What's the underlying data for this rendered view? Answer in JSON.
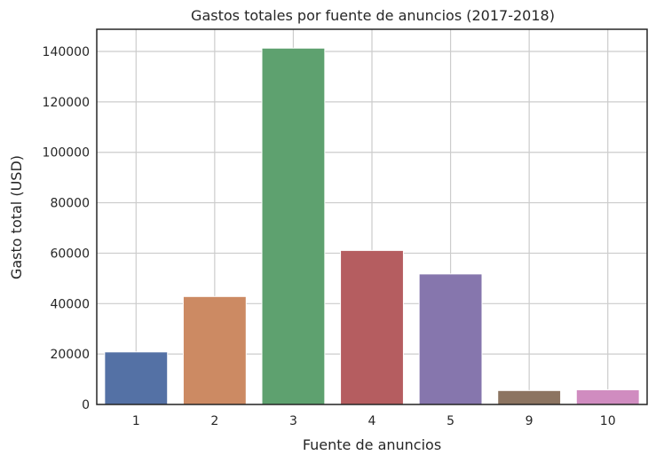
{
  "chart_data": {
    "type": "bar",
    "title": "Gastos totales por fuente de anuncios (2017-2018)",
    "xlabel": "Fuente de anuncios",
    "ylabel": "Gasto total (USD)",
    "categories": [
      "1",
      "2",
      "3",
      "4",
      "5",
      "9",
      "10"
    ],
    "values": [
      20833,
      42806,
      141322,
      61074,
      51757,
      5518,
      5822
    ],
    "ylim": [
      0,
      148800
    ],
    "yticks": [
      0,
      20000,
      40000,
      60000,
      80000,
      100000,
      120000,
      140000
    ],
    "ytick_labels": [
      "0",
      "20000",
      "40000",
      "60000",
      "80000",
      "100000",
      "120000",
      "140000"
    ],
    "colors": [
      "#5471a5",
      "#cc8a63",
      "#5ea16f",
      "#b55d60",
      "#8676ad",
      "#8c7461",
      "#d08cc0"
    ],
    "grid": true,
    "legend": "none"
  }
}
